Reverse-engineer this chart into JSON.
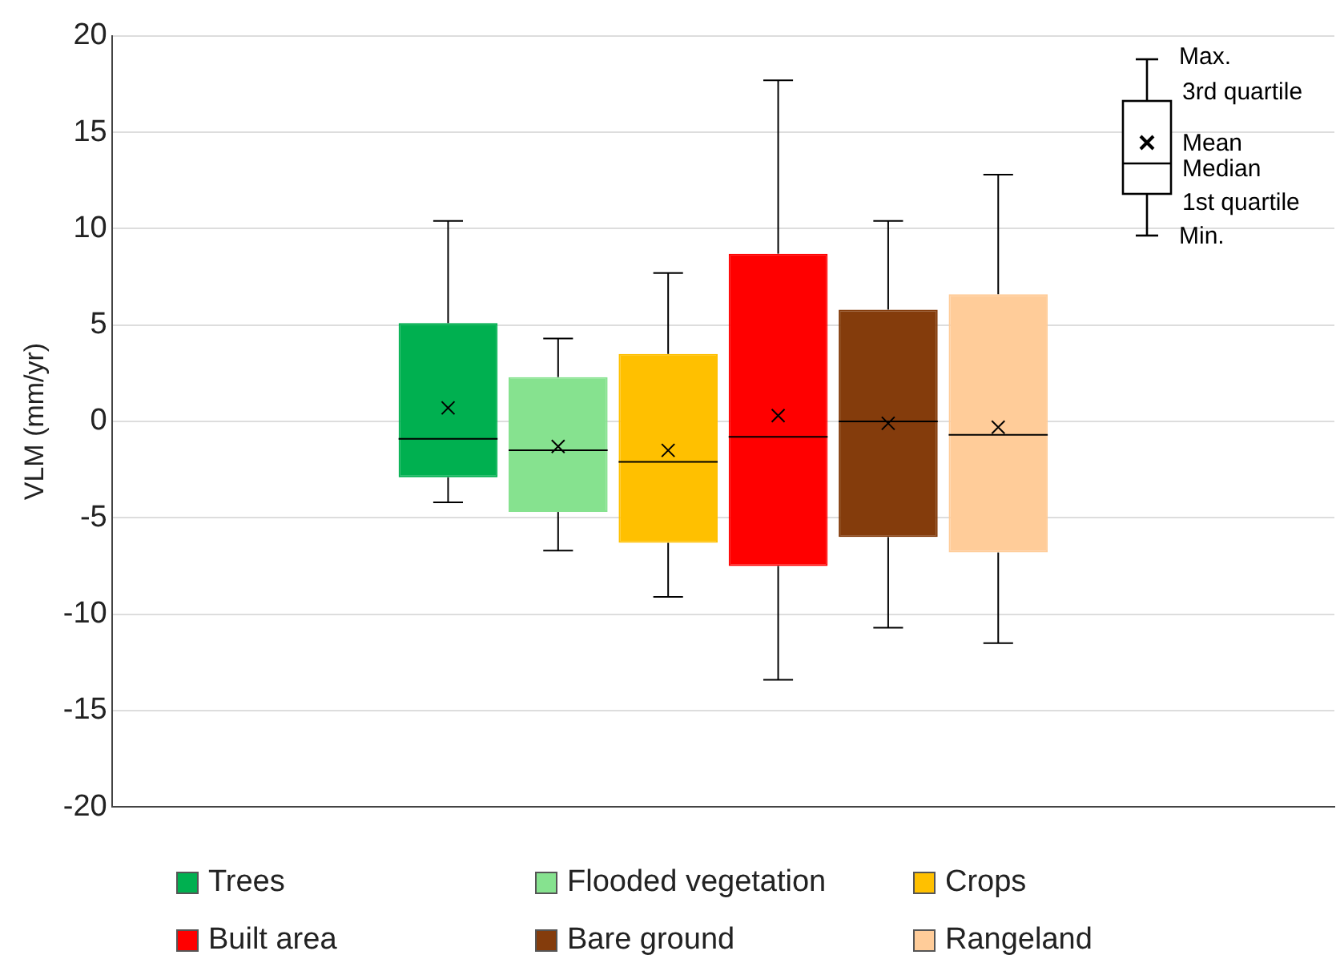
{
  "chart_data": {
    "type": "box",
    "ylabel": "VLM (mm/yr)",
    "categories": [
      null
    ],
    "series": [
      {
        "name": "Trees",
        "color": "#00b050",
        "boxes": [
          {
            "low": -4.2,
            "q1": -2.9,
            "median": -0.9,
            "q3": 5.1,
            "high": 10.4,
            "mean": 0.7
          }
        ]
      },
      {
        "name": "Flooded vegetation",
        "color": "#86e28f",
        "boxes": [
          {
            "low": -6.7,
            "q1": -4.7,
            "median": -1.5,
            "q3": 2.3,
            "high": 4.3,
            "mean": -1.3
          }
        ]
      },
      {
        "name": "Crops",
        "color": "#ffc000",
        "boxes": [
          {
            "low": -9.1,
            "q1": -6.3,
            "median": -2.1,
            "q3": 3.5,
            "high": 7.7,
            "mean": -1.5
          }
        ]
      },
      {
        "name": "Built area",
        "color": "#ff0000",
        "boxes": [
          {
            "low": -13.4,
            "q1": -7.5,
            "median": -0.8,
            "q3": 8.7,
            "high": 17.7,
            "mean": 0.3
          }
        ]
      },
      {
        "name": "Bare ground",
        "color": "#843c0c",
        "boxes": [
          {
            "low": -10.7,
            "q1": -6.0,
            "median": 0.0,
            "q3": 5.8,
            "high": 10.4,
            "mean": -0.1
          }
        ]
      },
      {
        "name": "Rangeland",
        "color": "#ffcc99",
        "boxes": [
          {
            "low": -11.5,
            "q1": -6.8,
            "median": -0.7,
            "q3": 6.6,
            "high": 12.8,
            "mean": -0.3
          }
        ]
      }
    ],
    "ylim": [
      -20,
      20
    ],
    "yticks": [
      -20,
      -15,
      -10,
      -5,
      0,
      5,
      10,
      15,
      20
    ],
    "grid": "y",
    "legend": "bottom",
    "tick_labels": "y",
    "marker": "cross",
    "annotations": [
      "Max.",
      "3rd quartile",
      "Mean",
      "Median",
      "1st quartile",
      "Min."
    ]
  }
}
